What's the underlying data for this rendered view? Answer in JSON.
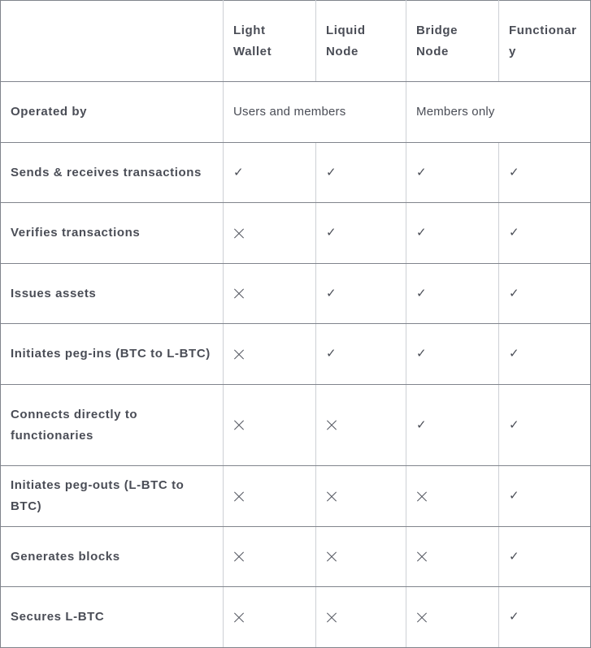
{
  "header": {
    "columns": [
      "",
      "Light Wallet",
      "Liquid Node",
      "Bridge Node",
      "Functionary"
    ]
  },
  "operated_by": {
    "label": "Operated by",
    "group1": "Users and members",
    "group2": "Members only"
  },
  "legend": {
    "check": "✓",
    "cross_icon": "cross-icon"
  },
  "rows": [
    {
      "label": "Sends & receives transactions",
      "values": [
        "check",
        "check",
        "check",
        "check"
      ]
    },
    {
      "label": "Verifies transactions",
      "values": [
        "cross",
        "check",
        "check",
        "check"
      ]
    },
    {
      "label": "Issues assets",
      "values": [
        "cross",
        "check",
        "check",
        "check"
      ]
    },
    {
      "label": "Initiates peg-ins (BTC to L-BTC)",
      "values": [
        "cross",
        "check",
        "check",
        "check"
      ]
    },
    {
      "label": "Connects directly to functionaries",
      "values": [
        "cross",
        "cross",
        "check",
        "check"
      ]
    },
    {
      "label": "Initiates peg-outs (L-BTC to BTC)",
      "values": [
        "cross",
        "cross",
        "cross",
        "check"
      ]
    },
    {
      "label": "Generates blocks",
      "values": [
        "cross",
        "cross",
        "cross",
        "check"
      ]
    },
    {
      "label": "Secures L-BTC",
      "values": [
        "cross",
        "cross",
        "cross",
        "check"
      ]
    }
  ]
}
